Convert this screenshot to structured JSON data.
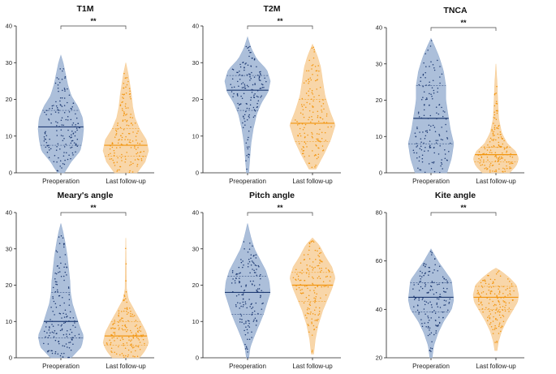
{
  "colors": {
    "preop_fill": "#9db4d4",
    "preop_dot": "#1f3b73",
    "follow_fill": "#f7cf9a",
    "follow_dot": "#f2950f",
    "axis": "#222222"
  },
  "chart_data": [
    {
      "type": "violin",
      "title": "T1M",
      "categories": [
        "Preoperation",
        "Last follow-up"
      ],
      "ylim": [
        0,
        40
      ],
      "yticks": [
        0,
        10,
        20,
        30,
        40
      ],
      "significance": "**",
      "series": [
        {
          "name": "Preoperation",
          "min": 0,
          "max": 32,
          "median": 12.5,
          "q1": 7.5,
          "q3": 17,
          "density": [
            [
              0,
              0.15
            ],
            [
              3,
              0.45
            ],
            [
              6,
              0.85
            ],
            [
              9,
              0.95
            ],
            [
              12,
              1.0
            ],
            [
              15,
              0.95
            ],
            [
              18,
              0.75
            ],
            [
              21,
              0.45
            ],
            [
              24,
              0.3
            ],
            [
              27,
              0.2
            ],
            [
              30,
              0.1
            ],
            [
              32,
              0
            ]
          ]
        },
        {
          "name": "Last follow-up",
          "min": 0,
          "max": 30,
          "median": 7.5,
          "q1": 4.5,
          "q3": 12,
          "density": [
            [
              0,
              0.5
            ],
            [
              3,
              0.85
            ],
            [
              6,
              1.0
            ],
            [
              9,
              0.9
            ],
            [
              12,
              0.6
            ],
            [
              15,
              0.4
            ],
            [
              18,
              0.3
            ],
            [
              21,
              0.25
            ],
            [
              24,
              0.18
            ],
            [
              27,
              0.1
            ],
            [
              30,
              0
            ]
          ]
        }
      ]
    },
    {
      "type": "violin",
      "title": "T2M",
      "categories": [
        "Preoperation",
        "Last follow-up"
      ],
      "ylim": [
        0,
        40
      ],
      "yticks": [
        0,
        10,
        20,
        30,
        40
      ],
      "significance": "**",
      "series": [
        {
          "name": "Preoperation",
          "min": 0,
          "max": 37,
          "median": 22.5,
          "q1": 17,
          "q3": 26.5,
          "density": [
            [
              0,
              0.05
            ],
            [
              4,
              0.1
            ],
            [
              8,
              0.15
            ],
            [
              12,
              0.25
            ],
            [
              16,
              0.4
            ],
            [
              19,
              0.6
            ],
            [
              22,
              0.9
            ],
            [
              25,
              1.0
            ],
            [
              28,
              0.85
            ],
            [
              31,
              0.4
            ],
            [
              34,
              0.15
            ],
            [
              37,
              0
            ]
          ]
        },
        {
          "name": "Last follow-up",
          "min": 1,
          "max": 35,
          "median": 13.5,
          "q1": 8.5,
          "q3": 20,
          "density": [
            [
              1,
              0.15
            ],
            [
              5,
              0.5
            ],
            [
              9,
              0.8
            ],
            [
              13,
              1.0
            ],
            [
              17,
              0.75
            ],
            [
              21,
              0.55
            ],
            [
              25,
              0.45
            ],
            [
              29,
              0.35
            ],
            [
              32,
              0.2
            ],
            [
              35,
              0
            ]
          ]
        }
      ]
    },
    {
      "type": "violin",
      "title": "TNCA",
      "categories": [
        "Preoperation",
        "Last follow-up"
      ],
      "ylim": [
        0,
        40
      ],
      "yticks": [
        0,
        10,
        20,
        30,
        40
      ],
      "significance": "**",
      "series": [
        {
          "name": "Preoperation",
          "min": 0,
          "max": 37,
          "median": 15,
          "q1": 8,
          "q3": 24,
          "density": [
            [
              0,
              0.7
            ],
            [
              4,
              0.9
            ],
            [
              8,
              1.0
            ],
            [
              12,
              0.85
            ],
            [
              16,
              0.75
            ],
            [
              20,
              0.65
            ],
            [
              24,
              0.65
            ],
            [
              28,
              0.55
            ],
            [
              32,
              0.35
            ],
            [
              35,
              0.15
            ],
            [
              37,
              0
            ]
          ]
        },
        {
          "name": "Last follow-up",
          "min": 0,
          "max": 30,
          "median": 5,
          "q1": 3,
          "q3": 7,
          "density": [
            [
              0,
              0.6
            ],
            [
              2,
              0.9
            ],
            [
              4,
              1.0
            ],
            [
              6,
              0.85
            ],
            [
              8,
              0.5
            ],
            [
              11,
              0.25
            ],
            [
              15,
              0.12
            ],
            [
              20,
              0.08
            ],
            [
              25,
              0.05
            ],
            [
              30,
              0
            ]
          ]
        }
      ]
    },
    {
      "type": "violin",
      "title": "Meary's angle",
      "categories": [
        "Preoperation",
        "Last follow-up"
      ],
      "ylim": [
        0,
        40
      ],
      "yticks": [
        0,
        10,
        20,
        30,
        40
      ],
      "significance": "**",
      "series": [
        {
          "name": "Preoperation",
          "min": 0,
          "max": 37,
          "median": 10,
          "q1": 5.5,
          "q3": 18,
          "density": [
            [
              0,
              0.45
            ],
            [
              3,
              0.9
            ],
            [
              6,
              1.0
            ],
            [
              9,
              0.8
            ],
            [
              12,
              0.65
            ],
            [
              15,
              0.5
            ],
            [
              18,
              0.42
            ],
            [
              21,
              0.4
            ],
            [
              24,
              0.35
            ],
            [
              28,
              0.28
            ],
            [
              32,
              0.18
            ],
            [
              35,
              0.08
            ],
            [
              37,
              0
            ]
          ]
        },
        {
          "name": "Last follow-up",
          "min": 0,
          "max": 33,
          "median": 6,
          "q1": 3.5,
          "q3": 10,
          "density": [
            [
              0,
              0.6
            ],
            [
              2,
              0.85
            ],
            [
              4,
              1.0
            ],
            [
              7,
              0.9
            ],
            [
              10,
              0.65
            ],
            [
              13,
              0.38
            ],
            [
              16,
              0.12
            ],
            [
              19,
              0.03
            ],
            [
              25,
              0.02
            ],
            [
              33,
              0
            ]
          ]
        }
      ]
    },
    {
      "type": "violin",
      "title": "Pitch angle",
      "categories": [
        "Preoperation",
        "Last follow-up"
      ],
      "ylim": [
        0,
        40
      ],
      "yticks": [
        0,
        10,
        20,
        30,
        40
      ],
      "significance": "**",
      "series": [
        {
          "name": "Preoperation",
          "min": 0,
          "max": 37,
          "median": 18,
          "q1": 12,
          "q3": 22.5,
          "density": [
            [
              0,
              0.05
            ],
            [
              3,
              0.12
            ],
            [
              6,
              0.3
            ],
            [
              9,
              0.5
            ],
            [
              12,
              0.7
            ],
            [
              15,
              0.85
            ],
            [
              18,
              1.0
            ],
            [
              21,
              0.95
            ],
            [
              24,
              0.8
            ],
            [
              27,
              0.55
            ],
            [
              30,
              0.3
            ],
            [
              33,
              0.15
            ],
            [
              37,
              0
            ]
          ]
        },
        {
          "name": "Last follow-up",
          "min": 1,
          "max": 33,
          "median": 20,
          "q1": 15.5,
          "q3": 23.5,
          "density": [
            [
              1,
              0.05
            ],
            [
              5,
              0.12
            ],
            [
              9,
              0.25
            ],
            [
              13,
              0.45
            ],
            [
              16,
              0.65
            ],
            [
              19,
              0.85
            ],
            [
              22,
              1.0
            ],
            [
              25,
              0.85
            ],
            [
              28,
              0.55
            ],
            [
              31,
              0.3
            ],
            [
              33,
              0
            ]
          ]
        }
      ]
    },
    {
      "type": "violin",
      "title": "Kite angle",
      "categories": [
        "Preoperation",
        "Last follow-up"
      ],
      "ylim": [
        20,
        80
      ],
      "yticks": [
        20,
        40,
        60,
        80
      ],
      "significance": "**",
      "series": [
        {
          "name": "Preoperation",
          "min": 20,
          "max": 65,
          "median": 45,
          "q1": 39,
          "q3": 51,
          "density": [
            [
              20,
              0.05
            ],
            [
              25,
              0.12
            ],
            [
              30,
              0.3
            ],
            [
              35,
              0.55
            ],
            [
              40,
              0.9
            ],
            [
              44,
              1.0
            ],
            [
              48,
              0.95
            ],
            [
              52,
              0.9
            ],
            [
              56,
              0.6
            ],
            [
              60,
              0.3
            ],
            [
              63,
              0.12
            ],
            [
              65,
              0
            ]
          ]
        },
        {
          "name": "Last follow-up",
          "min": 23,
          "max": 57,
          "median": 45,
          "q1": 40,
          "q3": 49.5,
          "density": [
            [
              23,
              0.05
            ],
            [
              27,
              0.12
            ],
            [
              31,
              0.25
            ],
            [
              35,
              0.45
            ],
            [
              39,
              0.7
            ],
            [
              43,
              0.95
            ],
            [
              46,
              1.0
            ],
            [
              50,
              0.9
            ],
            [
              53,
              0.6
            ],
            [
              56,
              0.2
            ],
            [
              57,
              0
            ]
          ]
        }
      ]
    }
  ]
}
